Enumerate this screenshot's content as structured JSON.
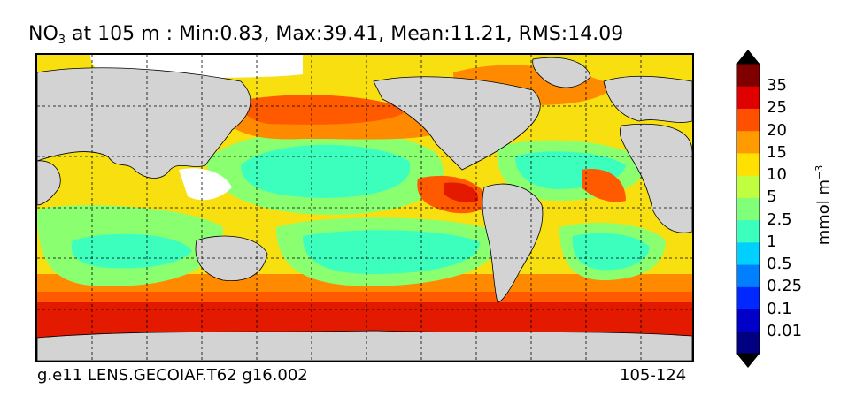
{
  "title": {
    "var_main": "NO",
    "var_sub": "3",
    "rest": " at 105 m : Min:0.83, Max:39.41, Mean:11.21, RMS:14.09"
  },
  "footer": {
    "left": "g.e11 LENS.GECOIAF.T62 g16.002",
    "right": "105-124"
  },
  "colorbar": {
    "unit_main": "mmol m",
    "unit_sup": "−3",
    "ticks": [
      "35",
      "25",
      "20",
      "15",
      "10",
      "5",
      "2.5",
      "1",
      "0.5",
      "0.25",
      "0.1",
      "0.01"
    ],
    "colors": [
      "#000080",
      "#0000c8",
      "#0028ff",
      "#0080ff",
      "#00d0ff",
      "#3cffbe",
      "#80ff78",
      "#c0ff40",
      "#ffe000",
      "#ff9a00",
      "#ff5000",
      "#e00000",
      "#800000"
    ]
  },
  "map": {
    "land_color": "#d3d3d3",
    "gridlines": "dashed"
  }
}
